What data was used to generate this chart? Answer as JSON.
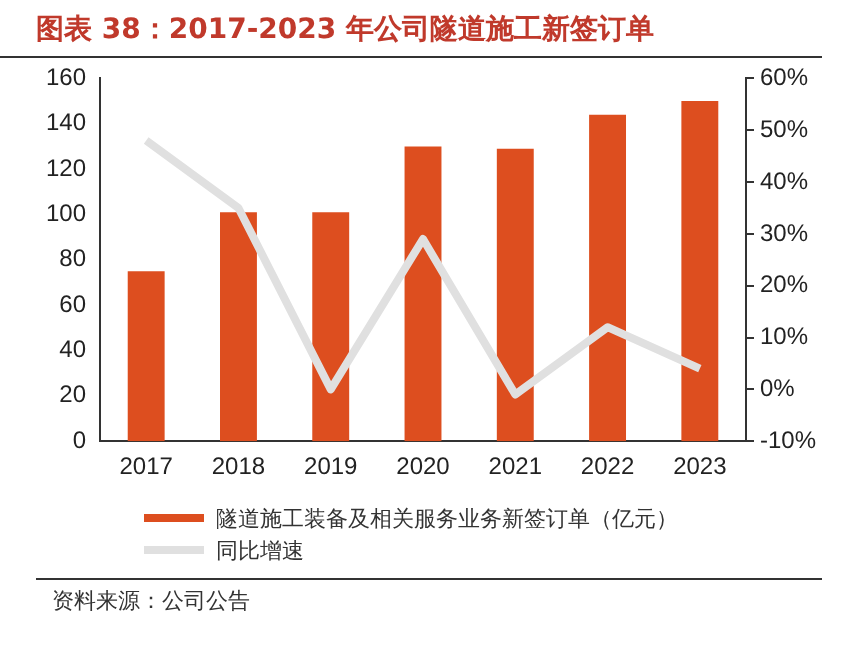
{
  "chart_data": {
    "type": "bar",
    "title": "图表 38：2017-2023 年公司隧道施工新签订单",
    "categories": [
      "2017",
      "2018",
      "2019",
      "2020",
      "2021",
      "2022",
      "2023"
    ],
    "series": [
      {
        "name": "隧道施工装备及相关服务业务新签订单（亿元）",
        "color": "#dd4e1f",
        "values": [
          75,
          101,
          101,
          130,
          129,
          144,
          150
        ]
      },
      {
        "name": "同比增速",
        "type": "line",
        "axis": "y2",
        "color": "#e0e0e0",
        "values": [
          48,
          35,
          0,
          29,
          -1,
          12,
          4
        ]
      }
    ],
    "ylim": [
      0,
      160
    ],
    "yticks": [
      0,
      20,
      40,
      60,
      80,
      100,
      120,
      140,
      160
    ],
    "y2lim": [
      -10,
      60
    ],
    "y2ticks": [
      {
        "value": -10,
        "label": "-10%"
      },
      {
        "value": 0,
        "label": "0%"
      },
      {
        "value": 10,
        "label": "10%"
      },
      {
        "value": 20,
        "label": "20%"
      },
      {
        "value": 30,
        "label": "30%"
      },
      {
        "value": 40,
        "label": "40%"
      },
      {
        "value": 50,
        "label": "50%"
      },
      {
        "value": 60,
        "label": "60%"
      }
    ],
    "grid": false,
    "legend": "bottom",
    "marker": "none",
    "annotations": [
      "资料来源：公司公告"
    ]
  }
}
